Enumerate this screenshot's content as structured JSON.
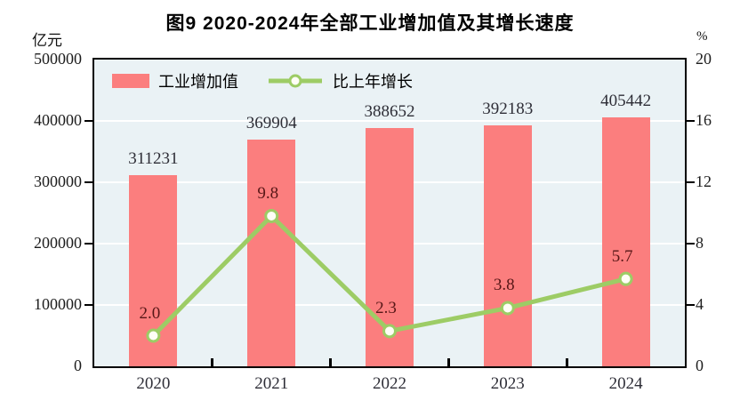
{
  "title": "图9  2020-2024年全部工业增加值及其增长速度",
  "chart_data": {
    "type": "bar+line",
    "title": "图9  2020-2024年全部工业增加值及其增长速度",
    "categories": [
      "2020",
      "2021",
      "2022",
      "2023",
      "2024"
    ],
    "series": [
      {
        "name": "工业增加值",
        "type": "bar",
        "axis": "left",
        "values": [
          311231,
          369904,
          388652,
          392183,
          405442
        ],
        "labels": [
          "311231",
          "369904",
          "388652",
          "392183",
          "405442"
        ],
        "color": "#FB7E7E"
      },
      {
        "name": "比上年增长",
        "type": "line",
        "axis": "right",
        "values": [
          2.0,
          9.8,
          2.3,
          3.8,
          5.7
        ],
        "labels": [
          "2.0",
          "9.8",
          "2.3",
          "3.8",
          "5.7"
        ],
        "color": "#9DCC65",
        "marker": "open-circle"
      }
    ],
    "left_axis": {
      "unit": "亿元",
      "min": 0,
      "max": 500000,
      "tick_interval": 100000,
      "ticks": [
        0,
        100000,
        200000,
        300000,
        400000,
        500000
      ]
    },
    "right_axis": {
      "unit": "%",
      "min": 0,
      "max": 20,
      "tick_interval": 4,
      "ticks": [
        0,
        4,
        8,
        12,
        16,
        20
      ]
    },
    "grid": "horizontal-white",
    "legend_position": "top-left-inside"
  },
  "colors": {
    "plot_background": "#EAF2F5",
    "gridline": "#FFFFFF",
    "axis_frame": "#000000",
    "bar": "#FB7E7E",
    "line": "#9DCC65",
    "marker_fill": "#FFFEF6",
    "bar_value_label": "#2E2E37",
    "line_value_label": "#571717"
  }
}
